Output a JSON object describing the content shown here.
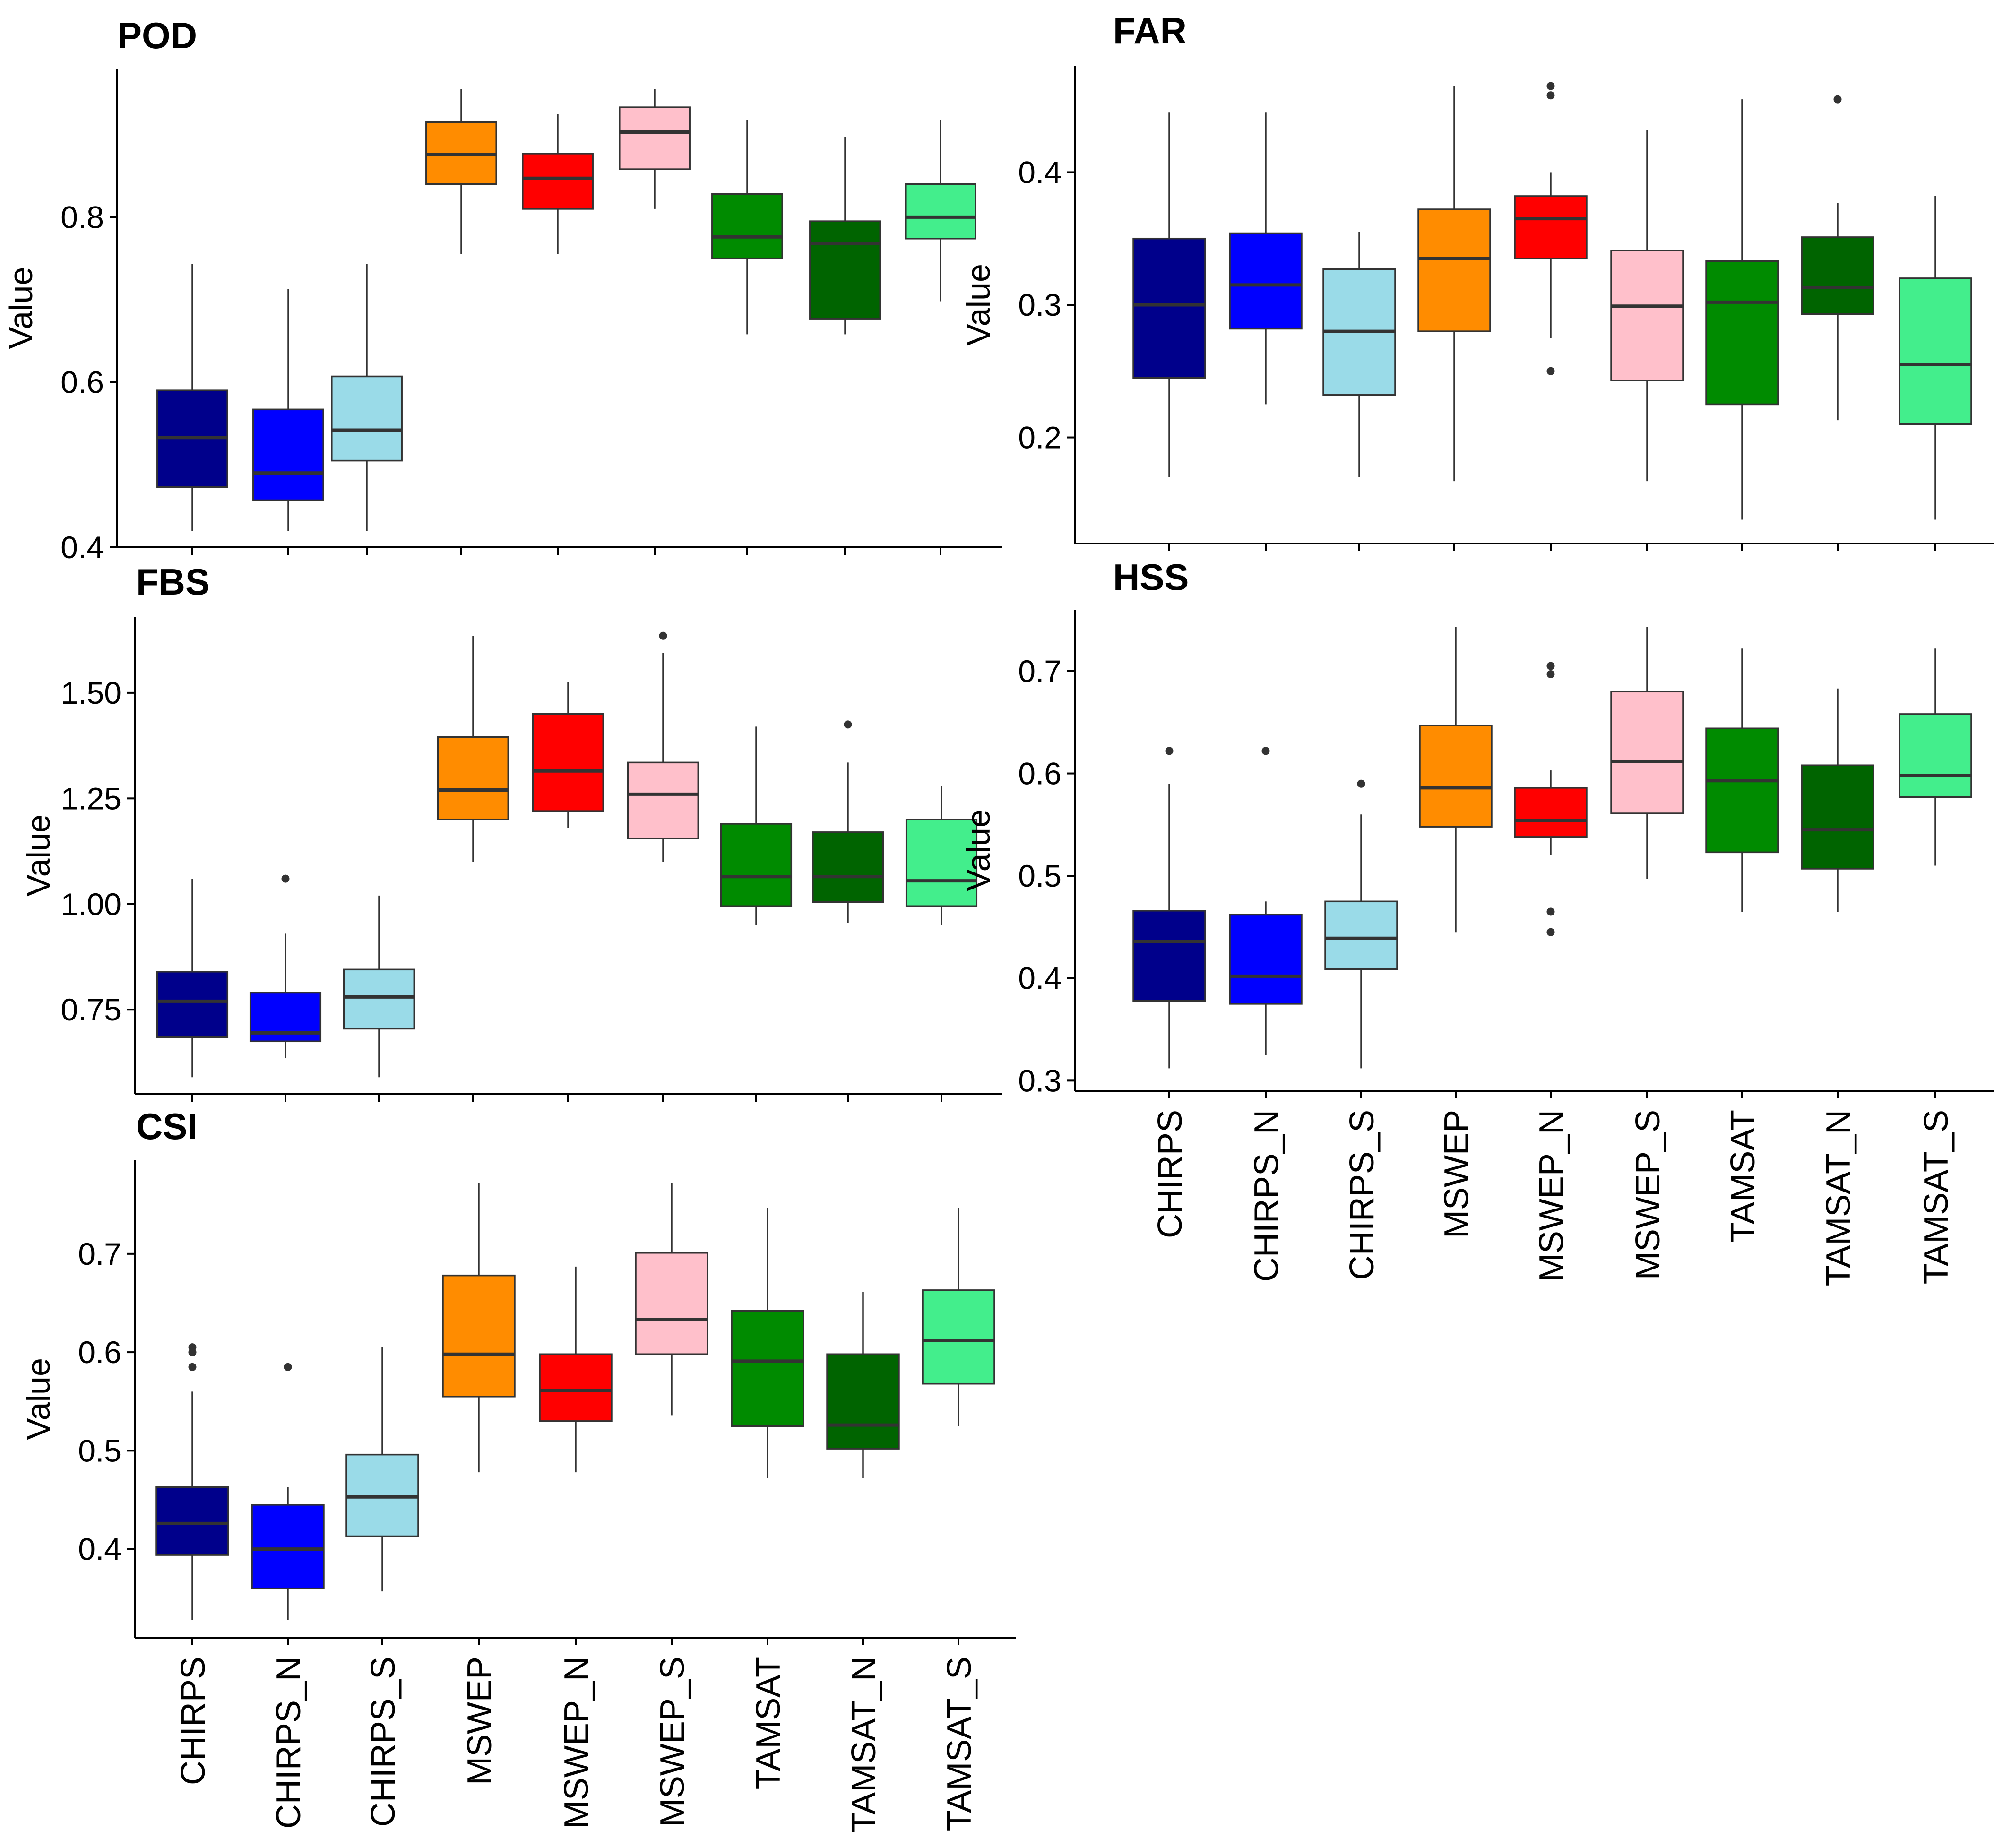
{
  "colors": {
    "CHIRPS": "#00008b",
    "CHIRPS_N": "#0000ff",
    "CHIRPS_S": "#9adbe8",
    "MSWEP": "#ff8c00",
    "MSWEP_N": "#ff0000",
    "MSWEP_S": "#ffc0cb",
    "TAMSAT": "#008b00",
    "TAMSAT_N": "#006400",
    "TAMSAT_S": "#43ee8c"
  },
  "chart_data": [
    {
      "type": "boxplot",
      "title": "POD",
      "ylabel": "Value",
      "ylim": [
        0.4,
        0.98
      ],
      "yticks": [
        "0.4",
        "0.6",
        "0.8"
      ],
      "yticks_values": [
        0.4,
        0.6,
        0.8
      ],
      "categories": [
        "CHIRPS",
        "CHIRPS_N",
        "CHIRPS_S",
        "MSWEP",
        "MSWEP_N",
        "MSWEP_S",
        "TAMSAT",
        "TAMSAT_N",
        "TAMSAT_S"
      ],
      "show_x_labels": false,
      "boxes": [
        {
          "name": "CHIRPS",
          "min": 0.42,
          "q1": 0.473,
          "median": 0.533,
          "q3": 0.59,
          "max": 0.743,
          "outliers": []
        },
        {
          "name": "CHIRPS_N",
          "min": 0.42,
          "q1": 0.457,
          "median": 0.49,
          "q3": 0.567,
          "max": 0.713,
          "outliers": []
        },
        {
          "name": "CHIRPS_S",
          "min": 0.42,
          "q1": 0.505,
          "median": 0.542,
          "q3": 0.607,
          "max": 0.743,
          "outliers": []
        },
        {
          "name": "MSWEP",
          "min": 0.755,
          "q1": 0.84,
          "median": 0.876,
          "q3": 0.915,
          "max": 0.955,
          "outliers": []
        },
        {
          "name": "MSWEP_N",
          "min": 0.755,
          "q1": 0.81,
          "median": 0.847,
          "q3": 0.877,
          "max": 0.925,
          "outliers": []
        },
        {
          "name": "MSWEP_S",
          "min": 0.81,
          "q1": 0.858,
          "median": 0.903,
          "q3": 0.933,
          "max": 0.955,
          "outliers": []
        },
        {
          "name": "TAMSAT",
          "min": 0.658,
          "q1": 0.75,
          "median": 0.776,
          "q3": 0.828,
          "max": 0.918,
          "outliers": []
        },
        {
          "name": "TAMSAT_N",
          "min": 0.658,
          "q1": 0.677,
          "median": 0.768,
          "q3": 0.795,
          "max": 0.897,
          "outliers": []
        },
        {
          "name": "TAMSAT_S",
          "min": 0.698,
          "q1": 0.774,
          "median": 0.8,
          "q3": 0.84,
          "max": 0.918,
          "outliers": []
        }
      ]
    },
    {
      "type": "boxplot",
      "title": "FAR",
      "ylabel": "Value",
      "ylim": [
        0.12,
        0.48
      ],
      "yticks": [
        "0.2",
        "0.3",
        "0.4"
      ],
      "yticks_values": [
        0.2,
        0.3,
        0.4
      ],
      "categories": [
        "CHIRPS",
        "CHIRPS_N",
        "CHIRPS_S",
        "MSWEP",
        "MSWEP_N",
        "MSWEP_S",
        "TAMSAT",
        "TAMSAT_N",
        "TAMSAT_S"
      ],
      "show_x_labels": false,
      "boxes": [
        {
          "name": "CHIRPS",
          "min": 0.17,
          "q1": 0.245,
          "median": 0.3,
          "q3": 0.35,
          "max": 0.445,
          "outliers": []
        },
        {
          "name": "CHIRPS_N",
          "min": 0.225,
          "q1": 0.282,
          "median": 0.315,
          "q3": 0.354,
          "max": 0.445,
          "outliers": []
        },
        {
          "name": "CHIRPS_S",
          "min": 0.17,
          "q1": 0.232,
          "median": 0.28,
          "q3": 0.327,
          "max": 0.355,
          "outliers": []
        },
        {
          "name": "MSWEP",
          "min": 0.167,
          "q1": 0.28,
          "median": 0.335,
          "q3": 0.372,
          "max": 0.465,
          "outliers": []
        },
        {
          "name": "MSWEP_N",
          "min": 0.275,
          "q1": 0.335,
          "median": 0.365,
          "q3": 0.382,
          "max": 0.4,
          "outliers": [
            0.465,
            0.458,
            0.25
          ]
        },
        {
          "name": "MSWEP_S",
          "min": 0.167,
          "q1": 0.243,
          "median": 0.299,
          "q3": 0.341,
          "max": 0.432,
          "outliers": []
        },
        {
          "name": "TAMSAT",
          "min": 0.138,
          "q1": 0.225,
          "median": 0.302,
          "q3": 0.333,
          "max": 0.455,
          "outliers": []
        },
        {
          "name": "TAMSAT_N",
          "min": 0.213,
          "q1": 0.293,
          "median": 0.313,
          "q3": 0.351,
          "max": 0.377,
          "outliers": [
            0.455
          ]
        },
        {
          "name": "TAMSAT_S",
          "min": 0.138,
          "q1": 0.21,
          "median": 0.255,
          "q3": 0.32,
          "max": 0.382,
          "outliers": []
        }
      ]
    },
    {
      "type": "boxplot",
      "title": "FBS",
      "ylabel": "Value",
      "ylim": [
        0.55,
        1.68
      ],
      "yticks": [
        "0.75",
        "1.00",
        "1.25",
        "1.50"
      ],
      "yticks_values": [
        0.75,
        1.0,
        1.25,
        1.5
      ],
      "categories": [
        "CHIRPS",
        "CHIRPS_N",
        "CHIRPS_S",
        "MSWEP",
        "MSWEP_N",
        "MSWEP_S",
        "TAMSAT",
        "TAMSAT_N",
        "TAMSAT_S"
      ],
      "show_x_labels": false,
      "boxes": [
        {
          "name": "CHIRPS",
          "min": 0.59,
          "q1": 0.685,
          "median": 0.77,
          "q3": 0.84,
          "max": 1.06,
          "outliers": []
        },
        {
          "name": "CHIRPS_N",
          "min": 0.635,
          "q1": 0.675,
          "median": 0.695,
          "q3": 0.79,
          "max": 0.93,
          "outliers": [
            1.06
          ]
        },
        {
          "name": "CHIRPS_S",
          "min": 0.59,
          "q1": 0.705,
          "median": 0.78,
          "q3": 0.845,
          "max": 1.02,
          "outliers": []
        },
        {
          "name": "MSWEP",
          "min": 1.1,
          "q1": 1.2,
          "median": 1.27,
          "q3": 1.395,
          "max": 1.635,
          "outliers": []
        },
        {
          "name": "MSWEP_N",
          "min": 1.18,
          "q1": 1.22,
          "median": 1.315,
          "q3": 1.45,
          "max": 1.525,
          "outliers": []
        },
        {
          "name": "MSWEP_S",
          "min": 1.1,
          "q1": 1.155,
          "median": 1.26,
          "q3": 1.335,
          "max": 1.595,
          "outliers": [
            1.635
          ]
        },
        {
          "name": "TAMSAT",
          "min": 0.95,
          "q1": 0.995,
          "median": 1.065,
          "q3": 1.19,
          "max": 1.42,
          "outliers": []
        },
        {
          "name": "TAMSAT_N",
          "min": 0.955,
          "q1": 1.005,
          "median": 1.065,
          "q3": 1.17,
          "max": 1.335,
          "outliers": [
            1.425
          ]
        },
        {
          "name": "TAMSAT_S",
          "min": 0.95,
          "q1": 0.995,
          "median": 1.055,
          "q3": 1.2,
          "max": 1.28,
          "outliers": []
        }
      ]
    },
    {
      "type": "boxplot",
      "title": "HSS",
      "ylabel": "Value",
      "ylim": [
        0.29,
        0.76
      ],
      "yticks": [
        "0.3",
        "0.4",
        "0.5",
        "0.6",
        "0.7"
      ],
      "yticks_values": [
        0.3,
        0.4,
        0.5,
        0.6,
        0.7
      ],
      "categories": [
        "CHIRPS",
        "CHIRPS_N",
        "CHIRPS_S",
        "MSWEP",
        "MSWEP_N",
        "MSWEP_S",
        "TAMSAT",
        "TAMSAT_N",
        "TAMSAT_S"
      ],
      "show_x_labels": true,
      "boxes": [
        {
          "name": "CHIRPS",
          "min": 0.312,
          "q1": 0.378,
          "median": 0.436,
          "q3": 0.466,
          "max": 0.59,
          "outliers": [
            0.622
          ]
        },
        {
          "name": "CHIRPS_N",
          "min": 0.325,
          "q1": 0.375,
          "median": 0.402,
          "q3": 0.462,
          "max": 0.475,
          "outliers": [
            0.622
          ]
        },
        {
          "name": "CHIRPS_S",
          "min": 0.312,
          "q1": 0.409,
          "median": 0.439,
          "q3": 0.475,
          "max": 0.56,
          "outliers": [
            0.59
          ]
        },
        {
          "name": "MSWEP",
          "min": 0.445,
          "q1": 0.548,
          "median": 0.586,
          "q3": 0.647,
          "max": 0.743,
          "outliers": []
        },
        {
          "name": "MSWEP_N",
          "min": 0.52,
          "q1": 0.538,
          "median": 0.554,
          "q3": 0.586,
          "max": 0.603,
          "outliers": [
            0.705,
            0.697,
            0.465,
            0.445
          ]
        },
        {
          "name": "MSWEP_S",
          "min": 0.497,
          "q1": 0.561,
          "median": 0.612,
          "q3": 0.68,
          "max": 0.743,
          "outliers": []
        },
        {
          "name": "TAMSAT",
          "min": 0.465,
          "q1": 0.523,
          "median": 0.593,
          "q3": 0.644,
          "max": 0.722,
          "outliers": []
        },
        {
          "name": "TAMSAT_N",
          "min": 0.465,
          "q1": 0.507,
          "median": 0.545,
          "q3": 0.608,
          "max": 0.683,
          "outliers": []
        },
        {
          "name": "TAMSAT_S",
          "min": 0.51,
          "q1": 0.577,
          "median": 0.598,
          "q3": 0.658,
          "max": 0.722,
          "outliers": []
        }
      ]
    },
    {
      "type": "boxplot",
      "title": "CSI",
      "ylabel": "Value",
      "ylim": [
        0.31,
        0.795
      ],
      "yticks": [
        "0.4",
        "0.5",
        "0.6",
        "0.7"
      ],
      "yticks_values": [
        0.4,
        0.5,
        0.6,
        0.7
      ],
      "categories": [
        "CHIRPS",
        "CHIRPS_N",
        "CHIRPS_S",
        "MSWEP",
        "MSWEP_N",
        "MSWEP_S",
        "TAMSAT",
        "TAMSAT_N",
        "TAMSAT_S"
      ],
      "show_x_labels": true,
      "boxes": [
        {
          "name": "CHIRPS",
          "min": 0.328,
          "q1": 0.394,
          "median": 0.426,
          "q3": 0.463,
          "max": 0.56,
          "outliers": [
            0.605,
            0.6,
            0.585
          ]
        },
        {
          "name": "CHIRPS_N",
          "min": 0.328,
          "q1": 0.36,
          "median": 0.4,
          "q3": 0.445,
          "max": 0.463,
          "outliers": [
            0.585
          ]
        },
        {
          "name": "CHIRPS_S",
          "min": 0.357,
          "q1": 0.413,
          "median": 0.453,
          "q3": 0.496,
          "max": 0.605,
          "outliers": []
        },
        {
          "name": "MSWEP",
          "min": 0.478,
          "q1": 0.555,
          "median": 0.598,
          "q3": 0.678,
          "max": 0.772,
          "outliers": []
        },
        {
          "name": "MSWEP_N",
          "min": 0.478,
          "q1": 0.53,
          "median": 0.561,
          "q3": 0.598,
          "max": 0.687,
          "outliers": []
        },
        {
          "name": "MSWEP_S",
          "min": 0.536,
          "q1": 0.598,
          "median": 0.633,
          "q3": 0.701,
          "max": 0.772,
          "outliers": []
        },
        {
          "name": "TAMSAT",
          "min": 0.472,
          "q1": 0.525,
          "median": 0.591,
          "q3": 0.642,
          "max": 0.747,
          "outliers": []
        },
        {
          "name": "TAMSAT_N",
          "min": 0.472,
          "q1": 0.502,
          "median": 0.526,
          "q3": 0.598,
          "max": 0.661,
          "outliers": []
        },
        {
          "name": "TAMSAT_S",
          "min": 0.525,
          "q1": 0.568,
          "median": 0.612,
          "q3": 0.663,
          "max": 0.747,
          "outliers": []
        }
      ]
    }
  ]
}
